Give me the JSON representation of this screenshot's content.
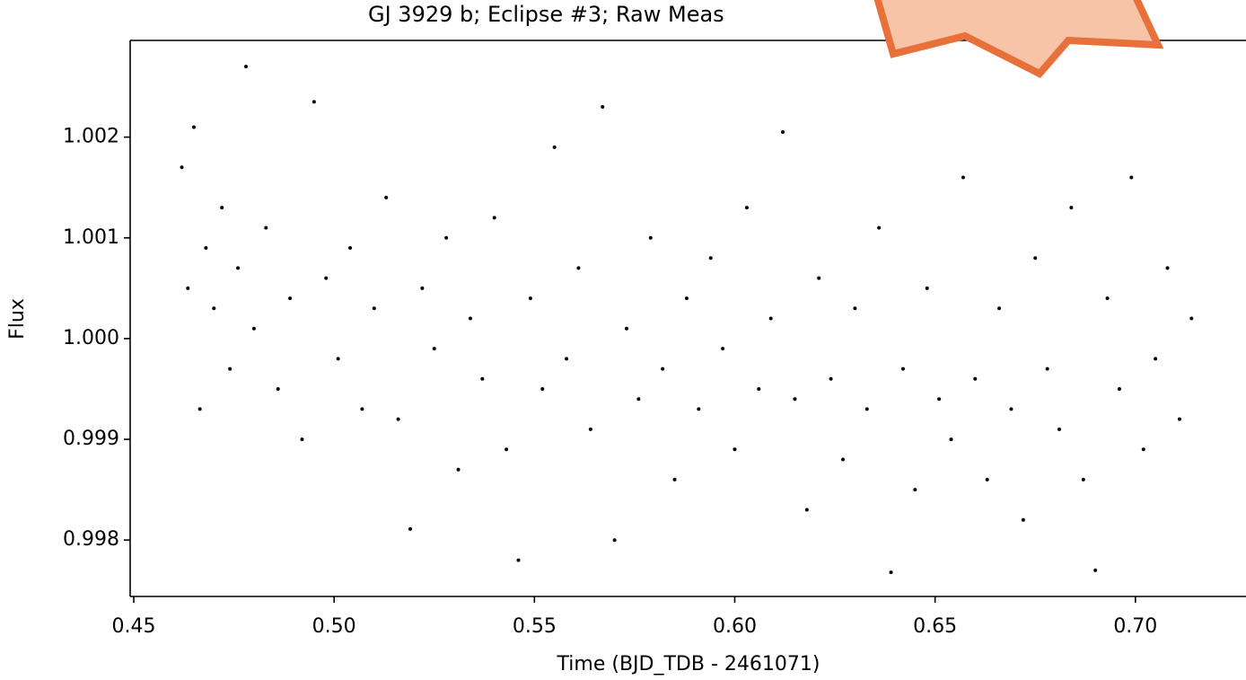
{
  "chart_data": {
    "type": "scatter",
    "title": "GJ 3929 b; Eclipse #3; Raw Meas",
    "x_label": "Time (BJD_TDB - 2461071)",
    "y_label": "Flux",
    "color": "#000000",
    "xlim": [
      0.4491,
      0.7276
    ],
    "ylim": [
      0.99744,
      1.00296
    ],
    "xticks": [
      0.45,
      {
        "value": 0.5,
        "label": "0.50"
      },
      0.55,
      {
        "value": 0.6,
        "label": "0.60"
      },
      0.65,
      {
        "value": 0.7,
        "label": "0.70"
      }
    ],
    "yticks": [
      0.998,
      0.999,
      {
        "value": 1.0,
        "label": "1.000"
      },
      1.001,
      1.002
    ],
    "x": [
      0.462,
      0.4635,
      0.465,
      0.4665,
      0.468,
      0.47,
      0.472,
      0.474,
      0.476,
      0.478,
      0.48,
      0.483,
      0.486,
      0.489,
      0.492,
      0.495,
      0.498,
      0.501,
      0.504,
      0.507,
      0.51,
      0.513,
      0.516,
      0.519,
      0.522,
      0.525,
      0.528,
      0.531,
      0.534,
      0.537,
      0.54,
      0.543,
      0.546,
      0.549,
      0.552,
      0.555,
      0.558,
      0.561,
      0.564,
      0.567,
      0.57,
      0.573,
      0.576,
      0.579,
      0.582,
      0.585,
      0.588,
      0.591,
      0.594,
      0.597,
      0.6,
      0.603,
      0.606,
      0.609,
      0.612,
      0.615,
      0.618,
      0.621,
      0.624,
      0.627,
      0.63,
      0.633,
      0.636,
      0.639,
      0.642,
      0.645,
      0.648,
      0.651,
      0.654,
      0.657,
      0.66,
      0.663,
      0.666,
      0.669,
      0.672,
      0.675,
      0.678,
      0.681,
      0.684,
      0.687,
      0.69,
      0.693,
      0.696,
      0.699,
      0.702,
      0.705,
      0.708,
      0.711,
      0.714
    ],
    "values": [
      1.0017,
      1.0005,
      1.0021,
      0.9993,
      1.0009,
      1.0003,
      1.0013,
      0.9997,
      1.0007,
      1.0027,
      1.0001,
      1.0011,
      0.9995,
      1.0004,
      0.999,
      1.00235,
      1.0006,
      0.9998,
      1.0009,
      0.9993,
      1.0003,
      1.0014,
      0.9992,
      0.99811,
      1.0005,
      0.9999,
      1.001,
      0.9987,
      1.0002,
      0.9996,
      1.0012,
      0.9989,
      0.9978,
      1.0004,
      0.9995,
      1.0019,
      0.9998,
      1.0007,
      0.9991,
      1.0023,
      0.998,
      1.0001,
      0.9994,
      1.001,
      0.9997,
      0.9986,
      1.0004,
      0.9993,
      1.0008,
      0.9999,
      0.9989,
      1.0013,
      0.9995,
      1.0002,
      1.00205,
      0.9994,
      0.9983,
      1.0006,
      0.9996,
      0.9988,
      1.0003,
      0.9993,
      1.0011,
      0.99768,
      0.9997,
      0.9985,
      1.0005,
      0.9994,
      0.999,
      1.0016,
      0.9996,
      0.9986,
      1.0003,
      0.9993,
      0.9982,
      1.0008,
      0.9997,
      0.9991,
      1.0013,
      0.9986,
      0.9977,
      1.0004,
      0.9995,
      1.0016,
      0.9989,
      0.9998,
      1.0007,
      0.9992,
      1.0002
    ]
  }
}
